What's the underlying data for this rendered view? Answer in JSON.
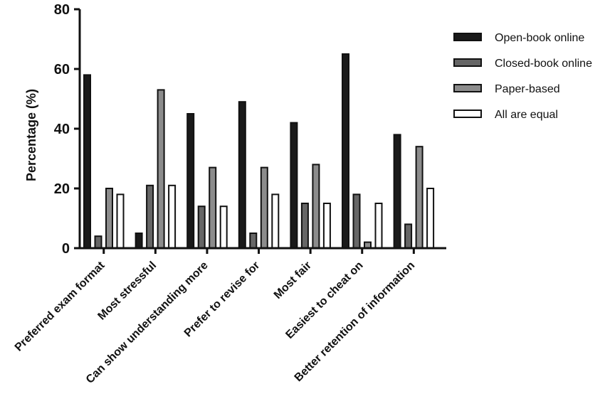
{
  "chart_data": {
    "type": "bar",
    "title": "",
    "xlabel": "",
    "ylabel": "Percentage (%)",
    "ylim": [
      0,
      80
    ],
    "yticks": [
      "0",
      "20",
      "40",
      "60",
      "80"
    ],
    "ytick_values": [
      0,
      20,
      40,
      60,
      80
    ],
    "grid": false,
    "legend_position": "right",
    "categories": [
      "Preferred exam format",
      "Most stressful",
      "Can show understanding more",
      "Prefer to revise for",
      "Most fair",
      "Easiest to cheat on",
      "Better retention of information"
    ],
    "series": [
      {
        "name": "Open-book online",
        "color": "#1a1a1a",
        "values": [
          58,
          5,
          45,
          49,
          42,
          65,
          38
        ]
      },
      {
        "name": "Closed-book online",
        "color": "#666666",
        "values": [
          4,
          21,
          14,
          5,
          15,
          18,
          8
        ]
      },
      {
        "name": "Paper-based",
        "color": "#8c8c8c",
        "values": [
          20,
          53,
          27,
          27,
          28,
          2,
          34
        ]
      },
      {
        "name": "All are equal",
        "color": "#ffffff",
        "values": [
          18,
          21,
          14,
          18,
          15,
          15,
          20
        ]
      }
    ]
  }
}
